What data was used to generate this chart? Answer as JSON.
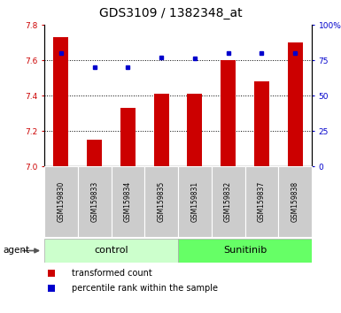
{
  "title": "GDS3109 / 1382348_at",
  "samples": [
    "GSM159830",
    "GSM159833",
    "GSM159834",
    "GSM159835",
    "GSM159831",
    "GSM159832",
    "GSM159837",
    "GSM159838"
  ],
  "bar_values": [
    7.73,
    7.15,
    7.33,
    7.41,
    7.41,
    7.6,
    7.48,
    7.7
  ],
  "percentile_values": [
    80,
    70,
    70,
    77,
    76,
    80,
    80,
    80
  ],
  "ylim_left": [
    7.0,
    7.8
  ],
  "ylim_right": [
    0,
    100
  ],
  "yticks_left": [
    7.0,
    7.2,
    7.4,
    7.6,
    7.8
  ],
  "yticks_right": [
    0,
    25,
    50,
    75,
    100
  ],
  "ytick_labels_right": [
    "0",
    "25",
    "50",
    "75",
    "100%"
  ],
  "bar_color": "#cc0000",
  "marker_color": "#0000cc",
  "group1_label": "control",
  "group2_label": "Sunitinib",
  "group1_color": "#ccffcc",
  "group2_color": "#66ff66",
  "sample_box_color": "#cccccc",
  "agent_label": "agent",
  "legend1": "transformed count",
  "legend2": "percentile rank within the sample",
  "title_fontsize": 10,
  "tick_fontsize": 6.5,
  "sample_fontsize": 5.5,
  "group_fontsize": 8,
  "legend_fontsize": 7
}
